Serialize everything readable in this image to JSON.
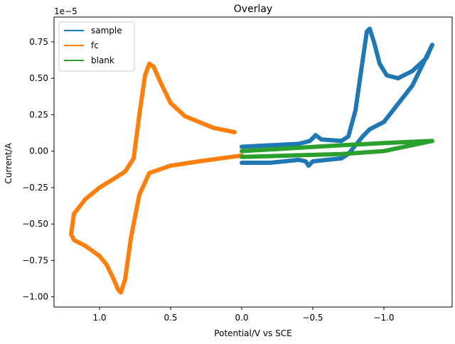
{
  "chart_data": {
    "type": "line",
    "title": "Overlay",
    "xlabel": "Potential/V vs SCE",
    "ylabel": "Current/A",
    "offset_text": "1e−5",
    "x_inverted": true,
    "xlim": [
      1.32,
      -1.48
    ],
    "ylim": [
      -1.07,
      0.92
    ],
    "x_ticks": [
      {
        "value": 1.0,
        "label": "1.0"
      },
      {
        "value": 0.5,
        "label": "0.5"
      },
      {
        "value": 0.0,
        "label": "0.0"
      },
      {
        "value": -0.5,
        "label": "−0.5"
      },
      {
        "value": -1.0,
        "label": "−1.0"
      }
    ],
    "y_ticks": [
      {
        "value": 0.75,
        "label": "0.75"
      },
      {
        "value": 0.5,
        "label": "0.50"
      },
      {
        "value": 0.25,
        "label": "0.25"
      },
      {
        "value": 0.0,
        "label": "0.00"
      },
      {
        "value": -0.25,
        "label": "−0.25"
      },
      {
        "value": -0.5,
        "label": "−0.50"
      },
      {
        "value": -0.75,
        "label": "−0.75"
      },
      {
        "value": -1.0,
        "label": "−1.00"
      }
    ],
    "grid": false,
    "legend_position": "upper-left",
    "series": [
      {
        "name": "sample",
        "color": "#1f77b4",
        "x": [
          0.0,
          -0.2,
          -0.4,
          -0.48,
          -0.52,
          -0.56,
          -0.7,
          -0.75,
          -0.8,
          -0.85,
          -0.88,
          -0.9,
          -0.93,
          -0.97,
          -1.02,
          -1.1,
          -1.2,
          -1.3,
          -1.34,
          -1.2,
          -1.0,
          -0.9,
          -0.85,
          -0.8,
          -0.75,
          -0.7,
          -0.6,
          -0.5,
          -0.47,
          -0.45,
          -0.4,
          -0.3,
          -0.2,
          0.0
        ],
        "y": [
          0.03,
          0.04,
          0.05,
          0.07,
          0.11,
          0.08,
          0.07,
          0.1,
          0.28,
          0.62,
          0.82,
          0.84,
          0.75,
          0.6,
          0.52,
          0.5,
          0.55,
          0.64,
          0.73,
          0.45,
          0.2,
          0.15,
          0.1,
          0.04,
          -0.02,
          -0.05,
          -0.06,
          -0.07,
          -0.1,
          -0.07,
          -0.06,
          -0.07,
          -0.08,
          -0.08
        ]
      },
      {
        "name": "fc",
        "color": "#ff7f0e",
        "x": [
          0.05,
          0.2,
          0.4,
          0.5,
          0.57,
          0.62,
          0.65,
          0.68,
          0.72,
          0.76,
          0.82,
          0.9,
          1.0,
          1.1,
          1.18,
          1.2,
          1.18,
          1.1,
          1.0,
          0.95,
          0.9,
          0.87,
          0.85,
          0.82,
          0.78,
          0.72,
          0.65,
          0.5,
          0.3,
          0.0
        ],
        "y": [
          0.13,
          0.16,
          0.24,
          0.33,
          0.47,
          0.58,
          0.6,
          0.52,
          0.25,
          -0.05,
          -0.14,
          -0.19,
          -0.25,
          -0.33,
          -0.43,
          -0.57,
          -0.61,
          -0.65,
          -0.72,
          -0.78,
          -0.88,
          -0.95,
          -0.97,
          -0.88,
          -0.6,
          -0.3,
          -0.15,
          -0.1,
          -0.07,
          -0.03
        ]
      },
      {
        "name": "blank",
        "color": "#2ca02c",
        "x": [
          0.0,
          -0.35,
          -0.7,
          -1.0,
          -1.34,
          -1.0,
          -0.7,
          -0.35,
          0.0
        ],
        "y": [
          0.0,
          0.02,
          0.04,
          0.055,
          0.07,
          -0.0,
          -0.02,
          -0.03,
          -0.04
        ]
      }
    ]
  }
}
